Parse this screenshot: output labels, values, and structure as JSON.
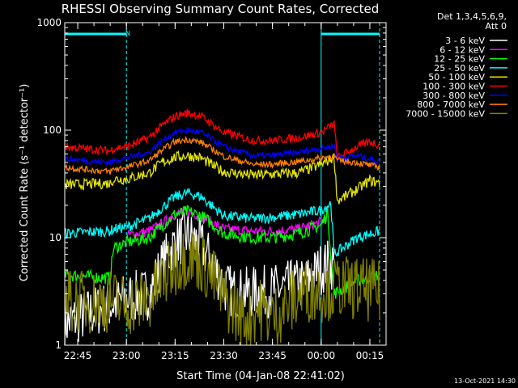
{
  "chart_data": {
    "type": "line",
    "title": "RHESSI Observing Summary Count Rates, Corrected",
    "xlabel": "Start Time (04-Jan-08 22:41:02)",
    "ylabel": "Corrected Count Rate (s⁻¹ detector⁻¹)",
    "yscale": "log",
    "ylim": [
      1,
      1000
    ],
    "xlim_minutes_after_start": [
      0,
      99
    ],
    "y_ticks": [
      {
        "label": "1",
        "value": 1
      },
      {
        "label": "10",
        "value": 10
      },
      {
        "label": "100",
        "value": 100
      },
      {
        "label": "1000",
        "value": 1000
      }
    ],
    "x_ticks": [
      {
        "label": "22:45",
        "value": 4
      },
      {
        "label": "23:00",
        "value": 19
      },
      {
        "label": "23:15",
        "value": 34
      },
      {
        "label": "23:30",
        "value": 49
      },
      {
        "label": "23:45",
        "value": 64
      },
      {
        "label": "00:00",
        "value": 79
      },
      {
        "label": "00:15",
        "value": 94
      }
    ],
    "legend_header": [
      "Det 1,3,4,5,6,9,",
      "Att 0"
    ],
    "night_marker_label": "N",
    "night_intervals": [
      [
        0,
        19
      ],
      [
        79,
        97
      ]
    ],
    "series": [
      {
        "name": "3 - 6 keV",
        "color": "#ffffff",
        "points": [
          [
            0,
            1.6
          ],
          [
            19,
            2.7
          ],
          [
            26,
            3
          ],
          [
            30,
            5.5
          ],
          [
            34,
            9
          ],
          [
            38,
            10.5
          ],
          [
            42,
            8.5
          ],
          [
            46,
            5.5
          ],
          [
            49,
            3.5
          ],
          [
            53,
            3
          ],
          [
            64,
            3.2
          ],
          [
            74,
            3.8
          ],
          [
            79,
            5.2
          ],
          [
            82,
            5.8
          ],
          [
            83,
            5.5
          ]
        ]
      },
      {
        "name": "6 - 12 keV",
        "color": "#ff00ff",
        "points": [
          [
            19,
            10.5
          ],
          [
            26,
            11.5
          ],
          [
            30,
            13.5
          ],
          [
            34,
            16.5
          ],
          [
            38,
            17.5
          ],
          [
            42,
            16
          ],
          [
            46,
            13.5
          ],
          [
            49,
            12
          ],
          [
            58,
            11.5
          ],
          [
            64,
            11.5
          ],
          [
            72,
            12
          ],
          [
            79,
            14
          ],
          [
            81,
            16.5
          ]
        ]
      },
      {
        "name": "12 - 25 keV",
        "color": "#00ff00",
        "points": [
          [
            0,
            4.5
          ],
          [
            14,
            4.2
          ],
          [
            15,
            8
          ],
          [
            19,
            9
          ],
          [
            26,
            10
          ],
          [
            30,
            13
          ],
          [
            34,
            16.5
          ],
          [
            38,
            17.5
          ],
          [
            42,
            16
          ],
          [
            46,
            13
          ],
          [
            49,
            11
          ],
          [
            58,
            10
          ],
          [
            64,
            10
          ],
          [
            72,
            11
          ],
          [
            79,
            13
          ],
          [
            81,
            17
          ],
          [
            83,
            3
          ],
          [
            90,
            4
          ],
          [
            97,
            4.5
          ]
        ]
      },
      {
        "name": "25 - 50 keV",
        "color": "#00ffff",
        "points": [
          [
            0,
            11
          ],
          [
            14,
            11.5
          ],
          [
            15,
            12
          ],
          [
            19,
            12.5
          ],
          [
            26,
            15
          ],
          [
            30,
            19
          ],
          [
            34,
            24
          ],
          [
            38,
            26
          ],
          [
            42,
            24
          ],
          [
            46,
            19
          ],
          [
            49,
            16
          ],
          [
            58,
            15
          ],
          [
            64,
            15.5
          ],
          [
            72,
            16.5
          ],
          [
            79,
            18
          ],
          [
            82,
            21
          ],
          [
            83,
            7
          ],
          [
            90,
            10
          ],
          [
            97,
            11.5
          ]
        ]
      },
      {
        "name": "50 - 100 keV",
        "color": "#e6e600",
        "points": [
          [
            0,
            31
          ],
          [
            14,
            32
          ],
          [
            15,
            35
          ],
          [
            19,
            35
          ],
          [
            26,
            40
          ],
          [
            30,
            50
          ],
          [
            34,
            56
          ],
          [
            38,
            58
          ],
          [
            42,
            55
          ],
          [
            46,
            46
          ],
          [
            49,
            41
          ],
          [
            58,
            38
          ],
          [
            64,
            39
          ],
          [
            72,
            40
          ],
          [
            79,
            48
          ],
          [
            83,
            56
          ],
          [
            84,
            22
          ],
          [
            90,
            28
          ],
          [
            94,
            34
          ],
          [
            97,
            32
          ]
        ]
      },
      {
        "name": "100 - 300 keV",
        "color": "#ff0000",
        "points": [
          [
            0,
            70
          ],
          [
            14,
            64
          ],
          [
            15,
            68
          ],
          [
            19,
            70
          ],
          [
            26,
            85
          ],
          [
            30,
            110
          ],
          [
            34,
            135
          ],
          [
            38,
            145
          ],
          [
            42,
            135
          ],
          [
            46,
            110
          ],
          [
            49,
            95
          ],
          [
            58,
            80
          ],
          [
            64,
            80
          ],
          [
            72,
            85
          ],
          [
            79,
            95
          ],
          [
            83,
            115
          ],
          [
            84,
            55
          ],
          [
            90,
            70
          ],
          [
            94,
            78
          ],
          [
            97,
            73
          ]
        ]
      },
      {
        "name": "300 - 800 keV",
        "color": "#0000ff",
        "points": [
          [
            0,
            54
          ],
          [
            14,
            50
          ],
          [
            15,
            52
          ],
          [
            19,
            55
          ],
          [
            26,
            62
          ],
          [
            30,
            80
          ],
          [
            34,
            95
          ],
          [
            38,
            100
          ],
          [
            42,
            95
          ],
          [
            46,
            80
          ],
          [
            49,
            70
          ],
          [
            58,
            58
          ],
          [
            64,
            58
          ],
          [
            72,
            62
          ],
          [
            79,
            68
          ],
          [
            83,
            72
          ],
          [
            84,
            55
          ],
          [
            90,
            58
          ],
          [
            97,
            51
          ]
        ]
      },
      {
        "name": "800 - 7000 keV",
        "color": "#ff8000",
        "points": [
          [
            0,
            45
          ],
          [
            14,
            41
          ],
          [
            15,
            43
          ],
          [
            19,
            45
          ],
          [
            26,
            52
          ],
          [
            30,
            65
          ],
          [
            34,
            78
          ],
          [
            38,
            82
          ],
          [
            42,
            77
          ],
          [
            46,
            65
          ],
          [
            49,
            57
          ],
          [
            58,
            48
          ],
          [
            64,
            48
          ],
          [
            72,
            51
          ],
          [
            79,
            55
          ],
          [
            83,
            58
          ],
          [
            84,
            52
          ],
          [
            90,
            50
          ],
          [
            97,
            45
          ]
        ]
      },
      {
        "name": "7000 - 15000 keV",
        "color": "#808000",
        "points": [
          [
            0,
            2.6
          ],
          [
            8,
            2.5
          ],
          [
            14,
            2.6
          ],
          [
            19,
            2.4
          ],
          [
            26,
            2.6
          ],
          [
            30,
            4
          ],
          [
            34,
            5.5
          ],
          [
            38,
            7
          ],
          [
            42,
            6
          ],
          [
            46,
            4
          ],
          [
            49,
            2.8
          ],
          [
            55,
            1.7
          ],
          [
            60,
            2.2
          ],
          [
            64,
            1.8
          ],
          [
            69,
            2.4
          ],
          [
            74,
            3.2
          ],
          [
            79,
            3.2
          ],
          [
            84,
            3.5
          ],
          [
            90,
            3.4
          ],
          [
            97,
            3.1
          ]
        ]
      }
    ]
  },
  "footer": {
    "timestamp": "13-Oct-2021 14:30"
  }
}
